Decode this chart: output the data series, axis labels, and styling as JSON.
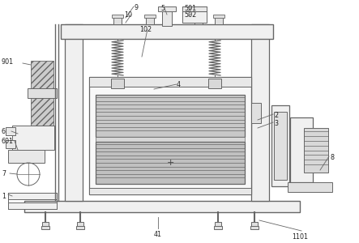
{
  "bg_color": "#ffffff",
  "lc": "#666666",
  "fc_light": "#f0f0f0",
  "fc_mid": "#e0e0e0",
  "fc_dark": "#c8c8c8",
  "fc_roller": "#b8b8b8",
  "fc_hatch": "#cccccc",
  "label_color": "#222222",
  "figsize": [
    4.43,
    3.0
  ],
  "dpi": 100
}
